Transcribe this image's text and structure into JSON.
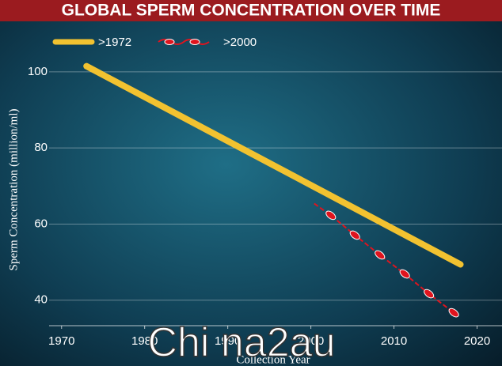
{
  "chart_data": {
    "type": "line",
    "title": "GLOBAL SPERM CONCENTRATION OVER TIME",
    "y_label": "Sperm Concentration (million/ml)",
    "x_label": "Collection Year",
    "watermark": "Chi na2au",
    "series": [
      {
        "name": ">1972",
        "color": "#f2c230",
        "x": [
          1973,
          2018
        ],
        "values": [
          101.5,
          49.4
        ]
      },
      {
        "name": ">2000",
        "color": "#e0141e",
        "x": [
          2000.4,
          2002.4,
          2005.3,
          2008.3,
          2011.3,
          2014.2,
          2017.2
        ],
        "values": [
          65.4,
          62.3,
          57.1,
          51.9,
          46.9,
          41.7,
          36.7
        ]
      }
    ],
    "xlim": [
      1968.5,
      2023
    ],
    "xticks": [
      1970,
      1980,
      1990,
      2000,
      2010,
      2020
    ],
    "ylim": [
      33.3,
      106
    ],
    "yticks": [
      40,
      60,
      80,
      100
    ],
    "grid": true,
    "legend": "top-left"
  }
}
